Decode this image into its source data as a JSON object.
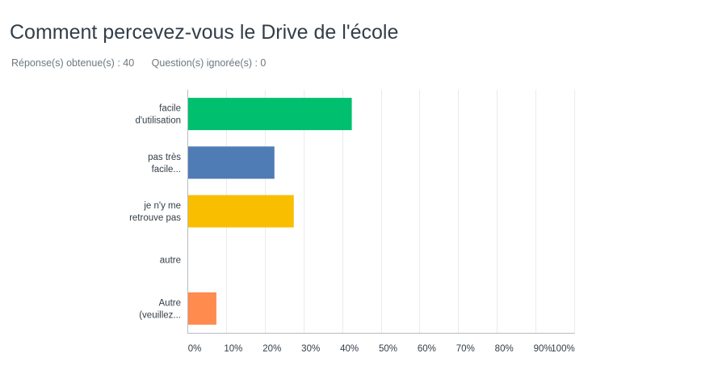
{
  "header": {
    "title": "Comment percevez-vous le Drive de l'école",
    "answered": "Réponse(s) obtenue(s) : 40",
    "skipped": "Question(s) ignorée(s) : 0"
  },
  "chart_data": {
    "type": "bar",
    "orientation": "horizontal",
    "categories": [
      [
        "facile",
        "d'utilisation"
      ],
      [
        "pas très",
        "facile..."
      ],
      [
        "je n'y me",
        "retrouve pas"
      ],
      [
        "autre"
      ],
      [
        "Autre",
        "(veuillez..."
      ]
    ],
    "values": [
      42.5,
      22.5,
      27.5,
      0,
      7.5
    ],
    "colors": [
      "#00bf6f",
      "#507cb6",
      "#f9be00",
      "#6bc8cd",
      "#ff8b4f"
    ],
    "xlim": [
      0,
      100
    ],
    "xticks": [
      "0%",
      "10%",
      "20%",
      "30%",
      "40%",
      "50%",
      "60%",
      "70%",
      "80%",
      "90%",
      "100%"
    ],
    "grid": true,
    "legend": "none"
  }
}
